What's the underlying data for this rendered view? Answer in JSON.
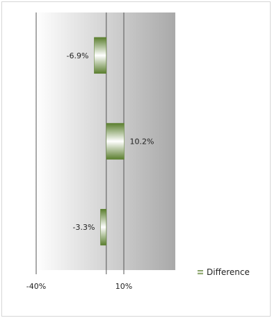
{
  "chart_data": {
    "type": "bar",
    "orientation": "horizontal",
    "categories": [
      "",
      "",
      ""
    ],
    "series": [
      {
        "name": "Difference",
        "values": [
          -6.9,
          10.2,
          -3.3
        ]
      }
    ],
    "data_labels": [
      "-6.9%",
      "10.2%",
      "-3.3%"
    ],
    "x_ticks": [
      "-40%",
      "10%"
    ],
    "xlim": [
      -40,
      10
    ],
    "baseline": 0,
    "grid": true,
    "legend": {
      "position": "right",
      "entries": [
        "Difference"
      ]
    },
    "colors": {
      "bar_dark": "#5a7e2e",
      "bar_light": "#ffffff",
      "plot_dark": "#a9a9a9",
      "plot_light": "#ffffff",
      "axis": "#555555"
    }
  }
}
